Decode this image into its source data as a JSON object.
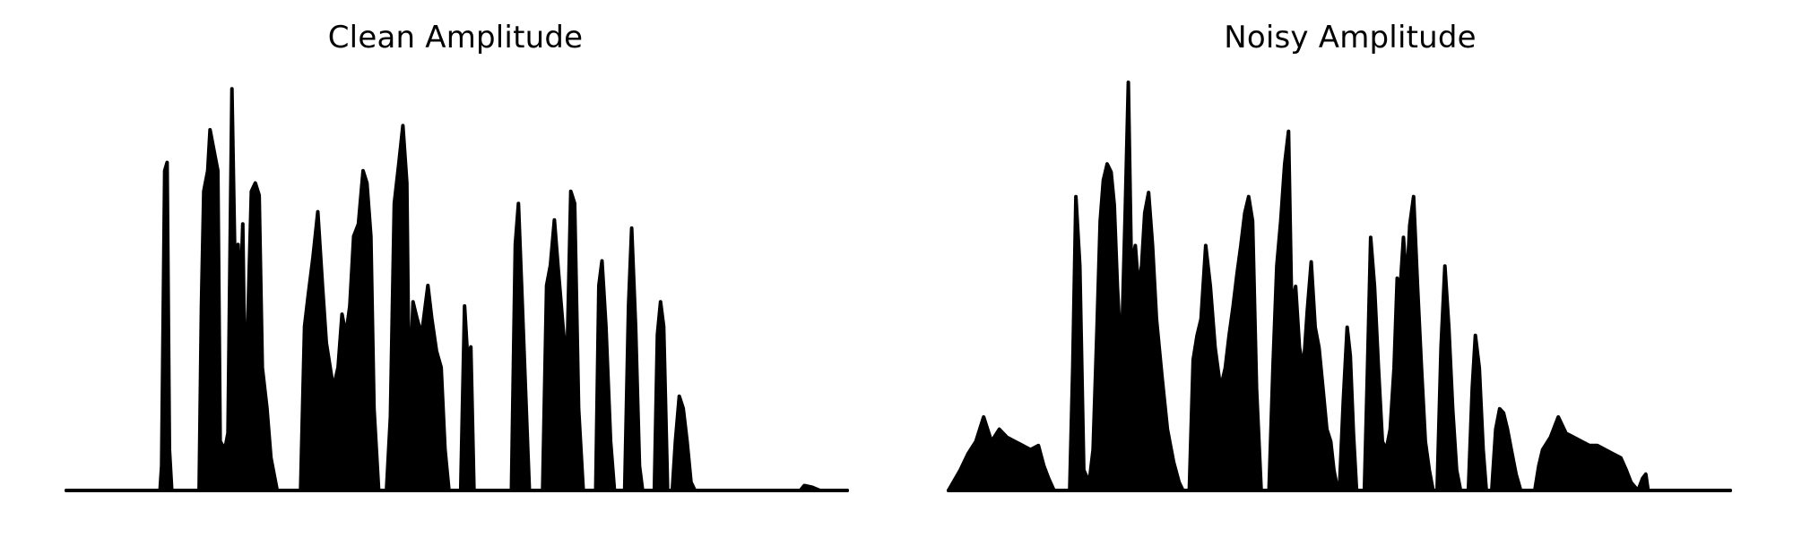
{
  "chart_data": [
    {
      "id": "clean",
      "type": "area",
      "title": "Clean Amplitude",
      "xlabel": "",
      "ylabel": "",
      "axes_visible": false,
      "grid": false,
      "line_color": "#000000",
      "fill_color": "#000000",
      "xlim": [
        0,
        100
      ],
      "ylim": [
        0,
        1
      ],
      "envelope": [
        [
          0,
          0.0
        ],
        [
          12.0,
          0.0
        ],
        [
          12.2,
          0.06
        ],
        [
          12.6,
          0.78
        ],
        [
          12.9,
          0.8
        ],
        [
          13.2,
          0.1
        ],
        [
          13.5,
          0.0
        ],
        [
          17.0,
          0.0
        ],
        [
          17.3,
          0.45
        ],
        [
          17.6,
          0.73
        ],
        [
          18.1,
          0.78
        ],
        [
          18.4,
          0.88
        ],
        [
          19.0,
          0.82
        ],
        [
          19.4,
          0.78
        ],
        [
          19.7,
          0.12
        ],
        [
          20.3,
          0.1
        ],
        [
          20.7,
          0.14
        ],
        [
          21.2,
          0.98
        ],
        [
          21.6,
          0.55
        ],
        [
          22.0,
          0.6
        ],
        [
          22.3,
          0.46
        ],
        [
          22.6,
          0.65
        ],
        [
          22.9,
          0.22
        ],
        [
          23.3,
          0.45
        ],
        [
          23.7,
          0.73
        ],
        [
          24.2,
          0.75
        ],
        [
          24.7,
          0.72
        ],
        [
          25.1,
          0.3
        ],
        [
          25.7,
          0.2
        ],
        [
          26.2,
          0.08
        ],
        [
          27.0,
          0.0
        ],
        [
          30.0,
          0.0
        ],
        [
          30.5,
          0.4
        ],
        [
          31.0,
          0.48
        ],
        [
          31.6,
          0.57
        ],
        [
          32.2,
          0.68
        ],
        [
          32.8,
          0.5
        ],
        [
          33.3,
          0.36
        ],
        [
          34.2,
          0.25
        ],
        [
          34.8,
          0.3
        ],
        [
          35.3,
          0.43
        ],
        [
          35.8,
          0.38
        ],
        [
          36.3,
          0.45
        ],
        [
          36.8,
          0.62
        ],
        [
          37.4,
          0.65
        ],
        [
          38.0,
          0.78
        ],
        [
          38.5,
          0.75
        ],
        [
          39.0,
          0.62
        ],
        [
          39.4,
          0.2
        ],
        [
          40.0,
          0.0
        ],
        [
          41.0,
          0.0
        ],
        [
          41.5,
          0.18
        ],
        [
          42.0,
          0.7
        ],
        [
          42.6,
          0.8
        ],
        [
          43.1,
          0.89
        ],
        [
          43.6,
          0.75
        ],
        [
          43.9,
          0.22
        ],
        [
          44.4,
          0.46
        ],
        [
          44.9,
          0.42
        ],
        [
          45.5,
          0.38
        ],
        [
          46.3,
          0.5
        ],
        [
          46.8,
          0.42
        ],
        [
          47.4,
          0.34
        ],
        [
          48.0,
          0.3
        ],
        [
          48.5,
          0.1
        ],
        [
          49.0,
          0.0
        ],
        [
          50.5,
          0.0
        ],
        [
          51.0,
          0.45
        ],
        [
          51.4,
          0.32
        ],
        [
          51.8,
          0.35
        ],
        [
          52.2,
          0.0
        ],
        [
          57.0,
          0.0
        ],
        [
          57.5,
          0.6
        ],
        [
          57.9,
          0.7
        ],
        [
          58.3,
          0.5
        ],
        [
          58.8,
          0.25
        ],
        [
          59.3,
          0.0
        ],
        [
          61.0,
          0.0
        ],
        [
          61.5,
          0.5
        ],
        [
          62.0,
          0.55
        ],
        [
          62.5,
          0.66
        ],
        [
          63.0,
          0.54
        ],
        [
          63.6,
          0.4
        ],
        [
          64.1,
          0.3
        ],
        [
          64.6,
          0.73
        ],
        [
          65.1,
          0.7
        ],
        [
          65.6,
          0.2
        ],
        [
          66.2,
          0.0
        ],
        [
          67.8,
          0.0
        ],
        [
          68.2,
          0.5
        ],
        [
          68.6,
          0.56
        ],
        [
          69.1,
          0.4
        ],
        [
          69.7,
          0.12
        ],
        [
          70.2,
          0.0
        ],
        [
          71.5,
          0.0
        ],
        [
          72.0,
          0.45
        ],
        [
          72.4,
          0.64
        ],
        [
          72.9,
          0.4
        ],
        [
          73.4,
          0.06
        ],
        [
          73.8,
          0.0
        ],
        [
          75.3,
          0.0
        ],
        [
          75.7,
          0.38
        ],
        [
          76.1,
          0.46
        ],
        [
          76.5,
          0.4
        ],
        [
          77.0,
          0.0
        ],
        [
          77.6,
          0.0
        ],
        [
          78.0,
          0.12
        ],
        [
          78.5,
          0.23
        ],
        [
          79.0,
          0.2
        ],
        [
          79.5,
          0.12
        ],
        [
          80.0,
          0.02
        ],
        [
          80.5,
          0.0
        ],
        [
          94.0,
          0.0
        ],
        [
          94.5,
          0.012
        ],
        [
          95.5,
          0.008
        ],
        [
          96.5,
          0.0
        ],
        [
          100.0,
          0.0
        ]
      ]
    },
    {
      "id": "noisy",
      "type": "area",
      "title": "Noisy Amplitude",
      "xlabel": "",
      "ylabel": "",
      "axes_visible": false,
      "grid": false,
      "line_color": "#000000",
      "fill_color": "#000000",
      "xlim": [
        0,
        100
      ],
      "ylim": [
        0,
        1
      ],
      "envelope": [
        [
          0,
          0.0
        ],
        [
          1.5,
          0.05
        ],
        [
          2.5,
          0.09
        ],
        [
          3.5,
          0.12
        ],
        [
          4.5,
          0.18
        ],
        [
          5.5,
          0.12
        ],
        [
          6.5,
          0.15
        ],
        [
          7.5,
          0.13
        ],
        [
          8.5,
          0.12
        ],
        [
          9.5,
          0.11
        ],
        [
          10.5,
          0.1
        ],
        [
          11.5,
          0.11
        ],
        [
          12.2,
          0.06
        ],
        [
          12.8,
          0.03
        ],
        [
          13.5,
          0.0
        ],
        [
          15.5,
          0.0
        ],
        [
          15.9,
          0.3
        ],
        [
          16.3,
          0.72
        ],
        [
          16.8,
          0.55
        ],
        [
          17.3,
          0.05
        ],
        [
          18.0,
          0.02
        ],
        [
          18.5,
          0.1
        ],
        [
          19.0,
          0.4
        ],
        [
          19.4,
          0.66
        ],
        [
          19.8,
          0.76
        ],
        [
          20.3,
          0.8
        ],
        [
          20.8,
          0.78
        ],
        [
          21.2,
          0.7
        ],
        [
          21.6,
          0.5
        ],
        [
          22.1,
          0.32
        ],
        [
          22.6,
          0.68
        ],
        [
          23.0,
          1.0
        ],
        [
          23.4,
          0.55
        ],
        [
          23.9,
          0.6
        ],
        [
          24.3,
          0.5
        ],
        [
          24.7,
          0.55
        ],
        [
          25.1,
          0.68
        ],
        [
          25.6,
          0.73
        ],
        [
          26.1,
          0.6
        ],
        [
          26.6,
          0.42
        ],
        [
          27.3,
          0.28
        ],
        [
          28.0,
          0.15
        ],
        [
          28.8,
          0.07
        ],
        [
          29.5,
          0.02
        ],
        [
          30.0,
          0.0
        ],
        [
          30.8,
          0.0
        ],
        [
          31.3,
          0.32
        ],
        [
          31.8,
          0.38
        ],
        [
          32.3,
          0.42
        ],
        [
          32.9,
          0.6
        ],
        [
          33.5,
          0.5
        ],
        [
          34.1,
          0.35
        ],
        [
          34.8,
          0.25
        ],
        [
          35.4,
          0.3
        ],
        [
          35.9,
          0.38
        ],
        [
          36.4,
          0.45
        ],
        [
          36.9,
          0.53
        ],
        [
          37.4,
          0.6
        ],
        [
          37.9,
          0.68
        ],
        [
          38.4,
          0.72
        ],
        [
          38.9,
          0.66
        ],
        [
          39.4,
          0.25
        ],
        [
          40.0,
          0.0
        ],
        [
          41.0,
          0.0
        ],
        [
          41.5,
          0.3
        ],
        [
          42.0,
          0.55
        ],
        [
          42.5,
          0.66
        ],
        [
          43.0,
          0.8
        ],
        [
          43.5,
          0.88
        ],
        [
          43.9,
          0.45
        ],
        [
          44.4,
          0.5
        ],
        [
          44.9,
          0.35
        ],
        [
          45.4,
          0.3
        ],
        [
          45.9,
          0.44
        ],
        [
          46.4,
          0.56
        ],
        [
          46.9,
          0.4
        ],
        [
          47.4,
          0.35
        ],
        [
          47.9,
          0.25
        ],
        [
          48.4,
          0.15
        ],
        [
          48.9,
          0.12
        ],
        [
          49.3,
          0.05
        ],
        [
          49.8,
          0.0
        ],
        [
          50.0,
          0.0
        ],
        [
          50.5,
          0.22
        ],
        [
          51.0,
          0.4
        ],
        [
          51.4,
          0.33
        ],
        [
          51.8,
          0.14
        ],
        [
          52.2,
          0.0
        ],
        [
          53.2,
          0.0
        ],
        [
          53.6,
          0.3
        ],
        [
          54.0,
          0.62
        ],
        [
          54.5,
          0.5
        ],
        [
          55.0,
          0.3
        ],
        [
          55.5,
          0.12
        ],
        [
          56.0,
          0.1
        ],
        [
          56.5,
          0.15
        ],
        [
          57.0,
          0.3
        ],
        [
          57.4,
          0.52
        ],
        [
          57.8,
          0.5
        ],
        [
          58.2,
          0.62
        ],
        [
          58.6,
          0.5
        ],
        [
          59.0,
          0.65
        ],
        [
          59.5,
          0.72
        ],
        [
          60.0,
          0.5
        ],
        [
          60.5,
          0.3
        ],
        [
          61.0,
          0.12
        ],
        [
          61.5,
          0.05
        ],
        [
          62.0,
          0.0
        ],
        [
          62.5,
          0.0
        ],
        [
          63.0,
          0.35
        ],
        [
          63.5,
          0.55
        ],
        [
          64.0,
          0.4
        ],
        [
          64.5,
          0.2
        ],
        [
          65.0,
          0.05
        ],
        [
          65.5,
          0.0
        ],
        [
          66.5,
          0.0
        ],
        [
          67.0,
          0.25
        ],
        [
          67.4,
          0.38
        ],
        [
          67.9,
          0.3
        ],
        [
          68.4,
          0.1
        ],
        [
          68.8,
          0.0
        ],
        [
          69.5,
          0.0
        ],
        [
          70.0,
          0.15
        ],
        [
          70.5,
          0.2
        ],
        [
          71.0,
          0.19
        ],
        [
          71.5,
          0.15
        ],
        [
          72.0,
          0.1
        ],
        [
          72.6,
          0.04
        ],
        [
          73.2,
          0.0
        ],
        [
          75.0,
          0.0
        ],
        [
          75.5,
          0.06
        ],
        [
          76.0,
          0.1
        ],
        [
          77.0,
          0.13
        ],
        [
          78.0,
          0.18
        ],
        [
          79.0,
          0.14
        ],
        [
          80.0,
          0.13
        ],
        [
          81.0,
          0.12
        ],
        [
          82.0,
          0.11
        ],
        [
          83.0,
          0.11
        ],
        [
          84.0,
          0.1
        ],
        [
          85.0,
          0.09
        ],
        [
          86.0,
          0.08
        ],
        [
          86.7,
          0.05
        ],
        [
          87.3,
          0.02
        ],
        [
          88.2,
          0.0
        ],
        [
          88.8,
          0.03
        ],
        [
          89.2,
          0.04
        ],
        [
          89.5,
          0.0
        ],
        [
          100.0,
          0.0
        ]
      ]
    }
  ]
}
